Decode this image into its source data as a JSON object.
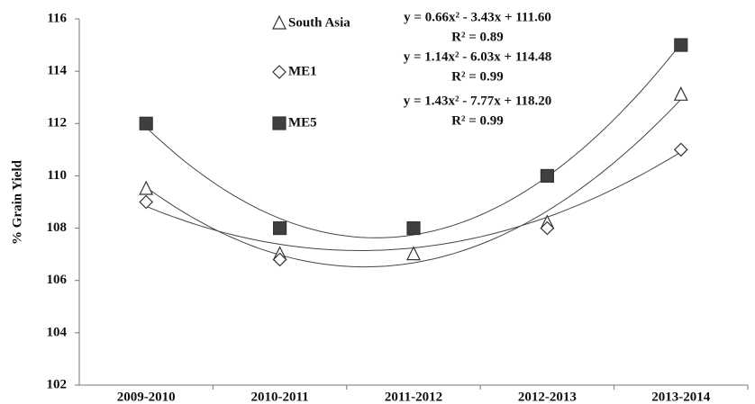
{
  "chart_data": {
    "type": "scatter",
    "y_label": "% Grain Yield",
    "categories": [
      "2009-2010",
      "2010-2011",
      "2011-2012",
      "2012-2013",
      "2013-2014"
    ],
    "series": [
      {
        "name": "South Asia",
        "marker": "triangle",
        "color": "#ffffff",
        "values": [
          109.5,
          107.0,
          107.0,
          108.2,
          113.1
        ]
      },
      {
        "name": "ME1",
        "marker": "diamond",
        "color": "#ffffff",
        "values": [
          109.0,
          106.8,
          108.0,
          108.0,
          111.0
        ]
      },
      {
        "name": "ME5",
        "marker": "square",
        "color": "#3f3f3f",
        "values": [
          112.0,
          108.0,
          108.0,
          110.0,
          115.0
        ]
      }
    ],
    "trendline": "polynomial",
    "annotations": [
      "y = 0.66x² - 3.43x + 111.60",
      "R² = 0.89",
      "y = 1.14x² - 6.03x + 114.48",
      "R² = 0.99",
      "y = 1.43x² - 7.77x + 118.20",
      "R² = 0.99"
    ],
    "ylim": [
      102,
      116
    ],
    "yticks": [
      102,
      104,
      106,
      108,
      110,
      112,
      114,
      116
    ],
    "grid": false
  }
}
